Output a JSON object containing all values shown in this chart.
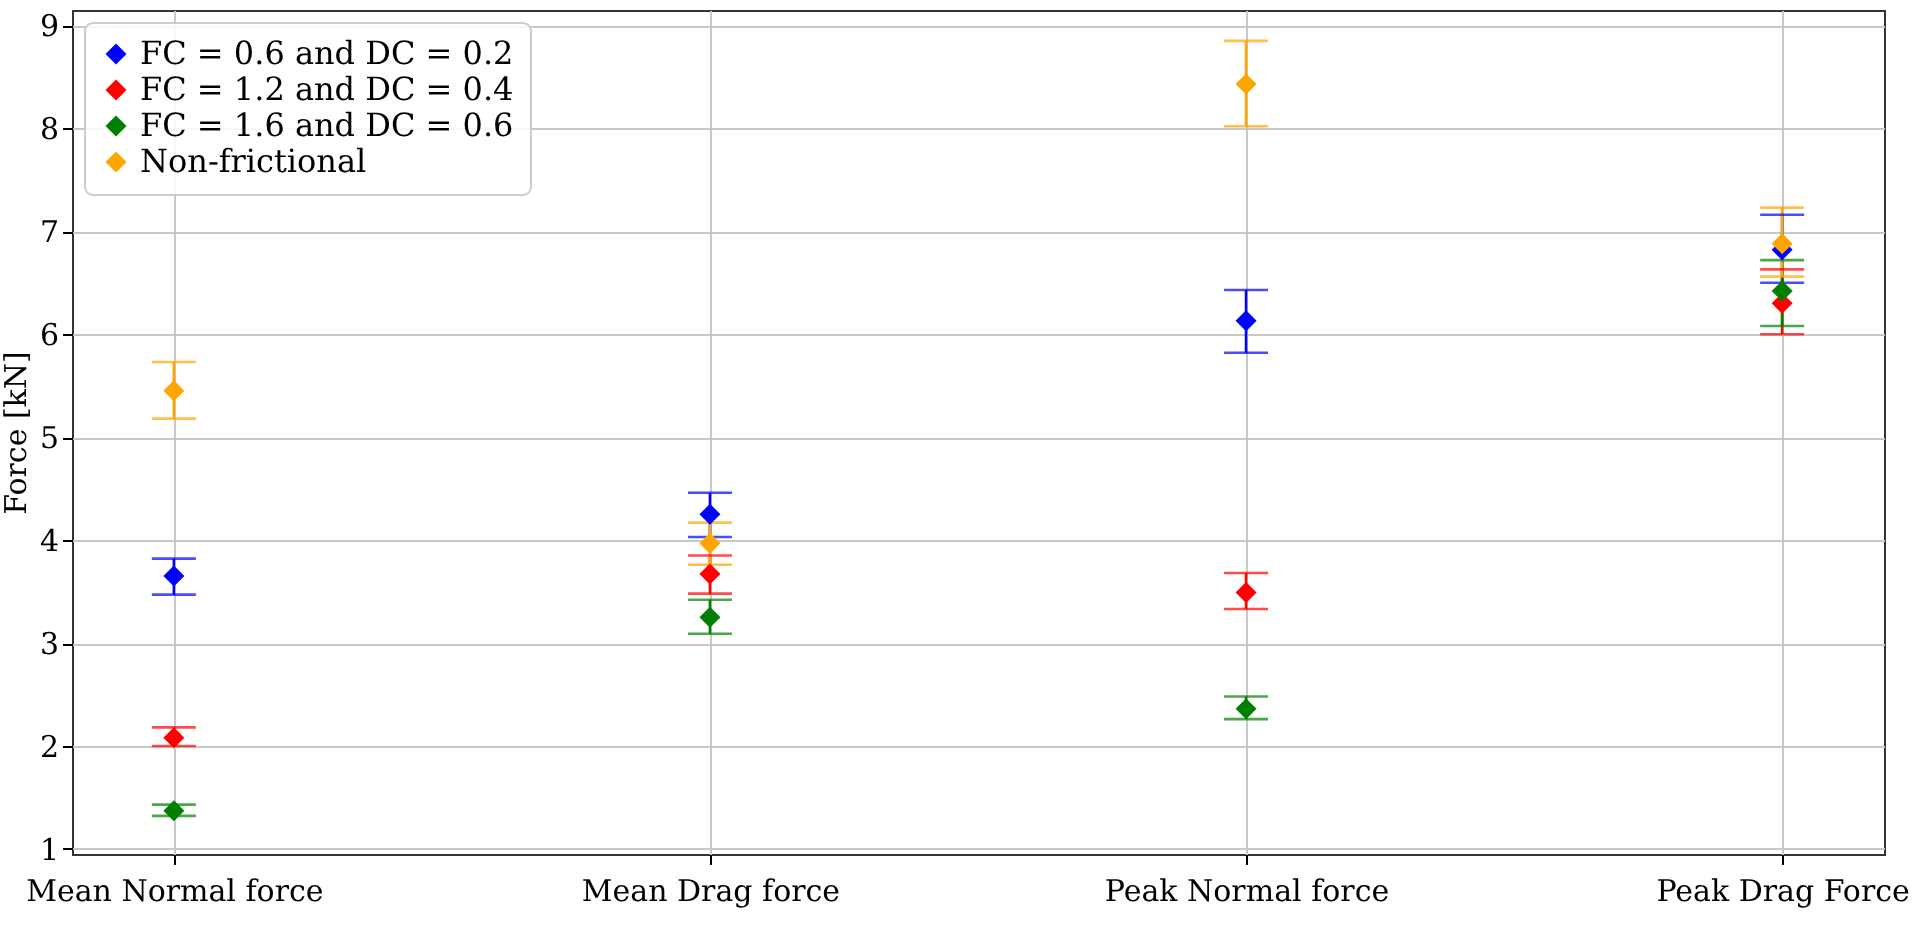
{
  "chart_data": {
    "type": "scatter",
    "ylabel": "Force [kN]",
    "categories": [
      "Mean Normal force",
      "Mean Drag force",
      "Peak Normal force",
      "Peak Drag Force"
    ],
    "ylim": [
      0.95,
      9.15
    ],
    "yticks": [
      1,
      2,
      3,
      4,
      5,
      6,
      7,
      8,
      9
    ],
    "grid": true,
    "legend": "top left",
    "marker": "diamond",
    "series": [
      {
        "name": "FC = 0.6 and DC = 0.2",
        "color": "#0000ff",
        "values": [
          3.65,
          4.25,
          6.13,
          6.82
        ],
        "errors": [
          [
            3.47,
            3.82
          ],
          [
            4.03,
            4.46
          ],
          [
            5.82,
            6.43
          ],
          [
            6.5,
            7.16
          ]
        ]
      },
      {
        "name": "FC = 1.2 and DC = 0.4",
        "color": "#ff0000",
        "values": [
          2.08,
          3.67,
          3.49,
          6.3
        ],
        "errors": [
          [
            2.0,
            2.18
          ],
          [
            3.48,
            3.85
          ],
          [
            3.33,
            3.68
          ],
          [
            6.0,
            6.63
          ]
        ]
      },
      {
        "name": "FC = 1.6 and DC = 0.6",
        "color": "#008000",
        "values": [
          1.37,
          3.25,
          2.36,
          6.42
        ],
        "errors": [
          [
            1.32,
            1.43
          ],
          [
            3.09,
            3.42
          ],
          [
            2.26,
            2.48
          ],
          [
            6.08,
            6.72
          ]
        ]
      },
      {
        "name": "Non-frictional",
        "color": "#ffa500",
        "values": [
          5.45,
          3.97,
          8.43,
          6.88
        ],
        "errors": [
          [
            5.18,
            5.73
          ],
          [
            3.76,
            4.17
          ],
          [
            8.02,
            8.85
          ],
          [
            6.56,
            7.23
          ]
        ]
      }
    ]
  }
}
